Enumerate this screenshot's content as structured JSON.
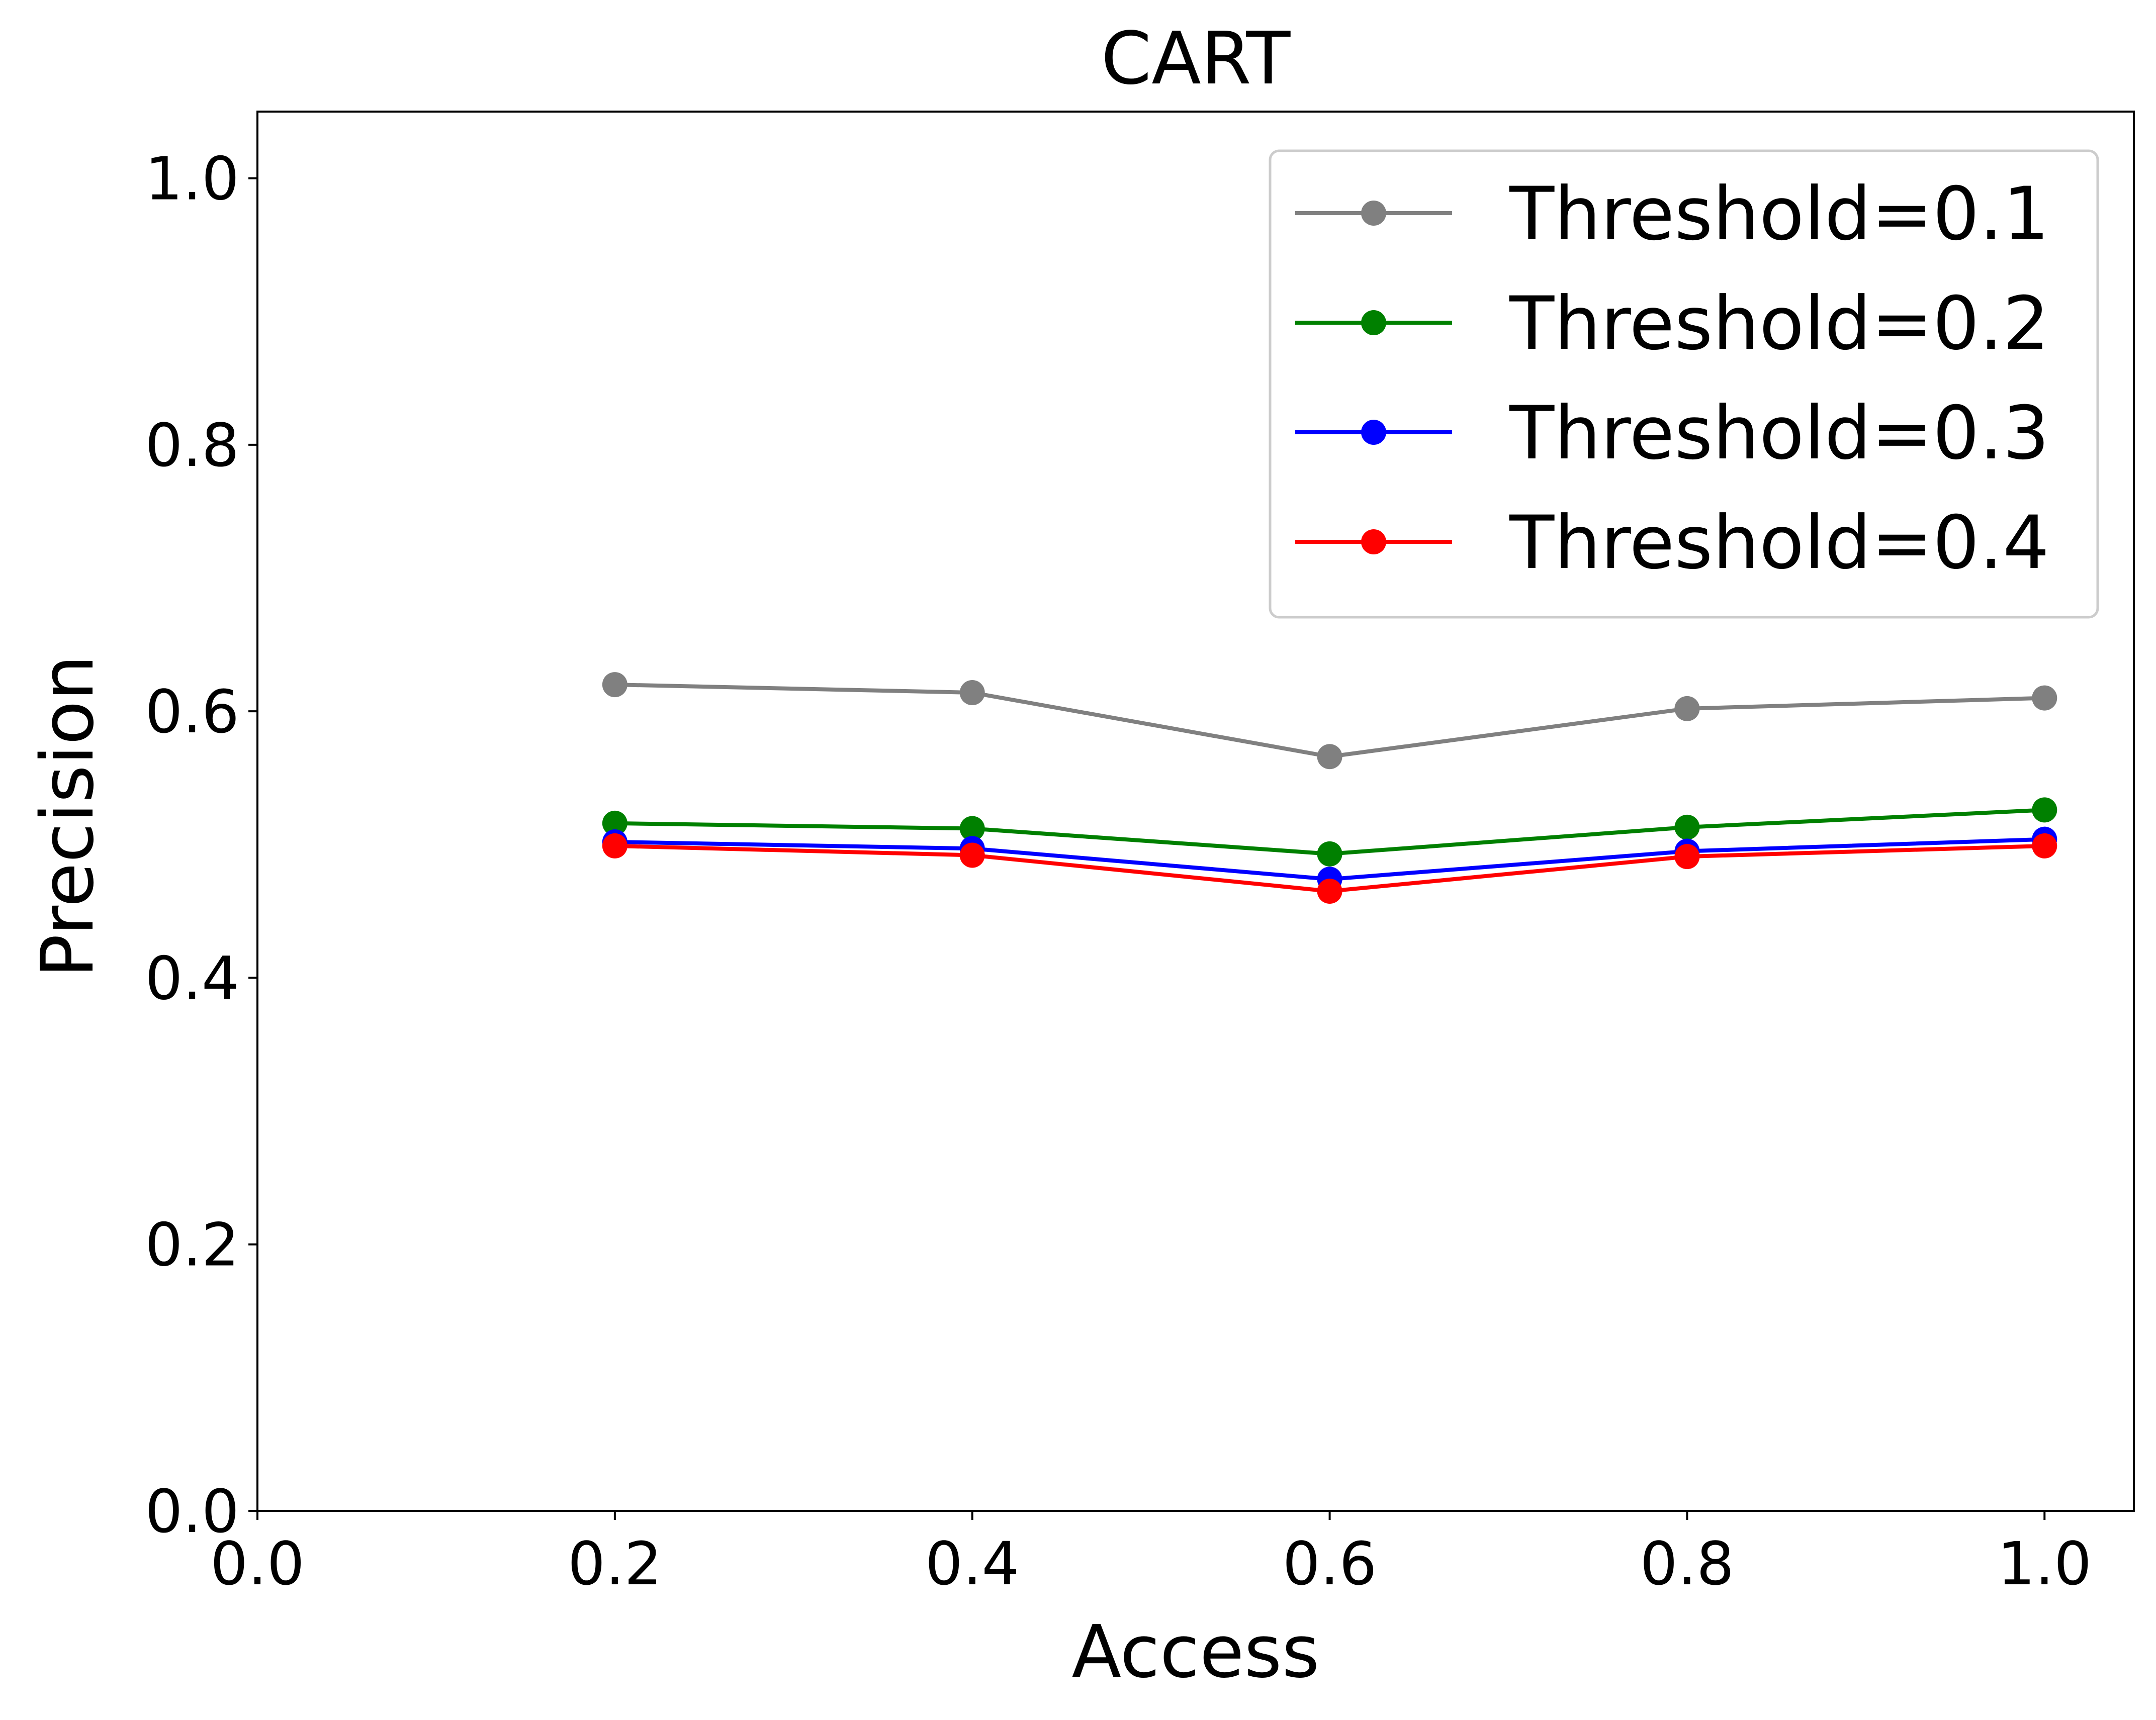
{
  "chart_data": {
    "type": "line",
    "title": "CART",
    "xlabel": "Access",
    "ylabel": "Precision",
    "xlim": [
      0.0,
      1.05
    ],
    "ylim": [
      0.0,
      1.05
    ],
    "xticks": [
      "0.0",
      "0.2",
      "0.4",
      "0.6",
      "0.8",
      "1.0"
    ],
    "yticks": [
      "0.0",
      "0.2",
      "0.4",
      "0.6",
      "0.8",
      "1.0"
    ],
    "grid": false,
    "legend_position": "top-right",
    "x": [
      0.2,
      0.4,
      0.6,
      0.8,
      1.0
    ],
    "series": [
      {
        "name": "Threshold=0.1",
        "color": "#808080",
        "values": [
          0.62,
          0.614,
          0.566,
          0.602,
          0.61
        ]
      },
      {
        "name": "Threshold=0.2",
        "color": "#008000",
        "values": [
          0.516,
          0.512,
          0.493,
          0.513,
          0.526
        ]
      },
      {
        "name": "Threshold=0.3",
        "color": "#0000ff",
        "values": [
          0.502,
          0.497,
          0.474,
          0.495,
          0.504
        ]
      },
      {
        "name": "Threshold=0.4",
        "color": "#ff0000",
        "values": [
          0.499,
          0.492,
          0.465,
          0.491,
          0.499
        ]
      }
    ]
  }
}
